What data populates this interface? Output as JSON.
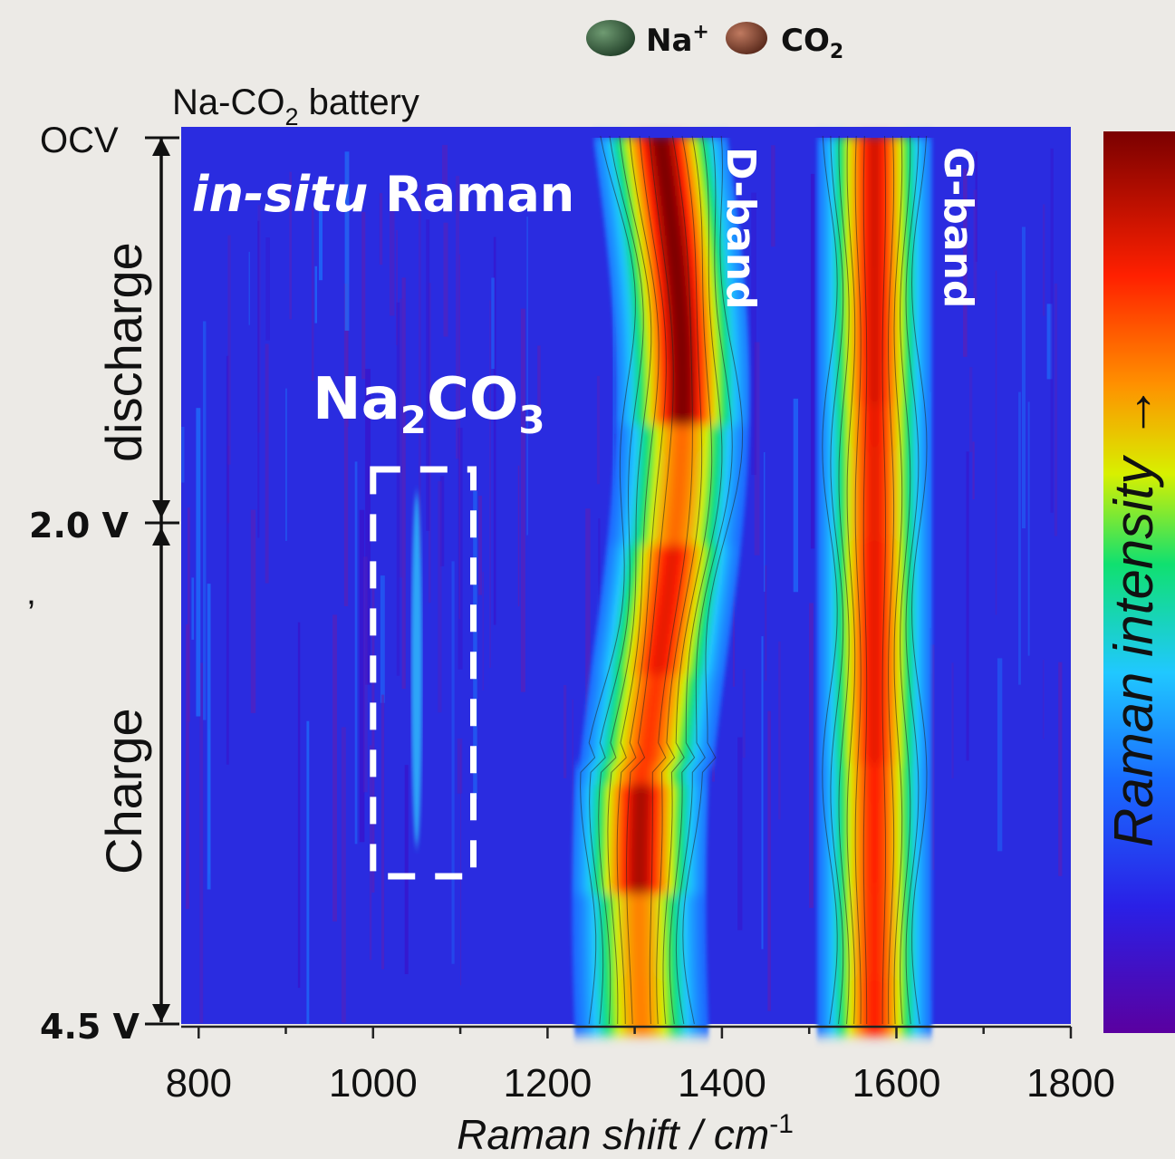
{
  "legend": {
    "items": [
      {
        "label": "Na",
        "sup": "+",
        "color": "#3f6b44"
      },
      {
        "label": "CO",
        "sub": "2",
        "color": "#8a4a35"
      }
    ]
  },
  "annotations": {
    "battery": {
      "pre": "Na-CO",
      "sub": "2",
      "post": " battery"
    },
    "insitu": {
      "italic": "in-situ",
      "rest": " Raman"
    },
    "product": {
      "a": "Na",
      "b": "2",
      "c": "CO",
      "d": "3"
    },
    "d_band": "D-band",
    "g_band": "G-band",
    "colorbar_label": "Raman intensity",
    "colorbar_arrow": "→"
  },
  "process": {
    "states": [
      "OCV",
      "2.0 V",
      "4.5 V"
    ],
    "segments": [
      "discharge",
      "Charge"
    ],
    "stray_mark": "’"
  },
  "chart_data": {
    "type": "heatmap",
    "xlabel": {
      "text": "Raman shift / cm",
      "sup": "-1"
    },
    "xlim": [
      780,
      1800
    ],
    "x_ticks": [
      800,
      1000,
      1200,
      1400,
      1600,
      1800
    ],
    "x_minor_step": 100,
    "y_axis": {
      "states": [
        "OCV",
        "2.0 V",
        "4.5 V"
      ],
      "progress_positions": [
        0,
        0.43,
        1.0
      ]
    },
    "bands": [
      {
        "name": "D-band",
        "center": 1330,
        "width_cm": 35
      },
      {
        "name": "G-band",
        "center": 1575,
        "width_cm": 30
      }
    ],
    "peak_region": {
      "label": "Na2CO3",
      "x_range": [
        1000,
        1115
      ],
      "peak_center": 1050,
      "progress_range": [
        0.4,
        0.8
      ]
    },
    "colormap": [
      "#5a00a0",
      "#2a20e6",
      "#1a6bff",
      "#20c8ff",
      "#10e070",
      "#d8f000",
      "#ff9000",
      "#ff2000",
      "#7a0000"
    ],
    "colorbar_range": [
      "low",
      "high"
    ]
  }
}
